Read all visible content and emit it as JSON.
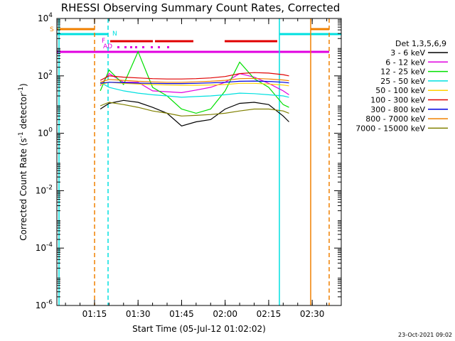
{
  "chart_data": {
    "type": "line",
    "title": "RHESSI Observing Summary Count Rates, Corrected",
    "xlabel": "Start Time (05-Jul-12 01:02:02)",
    "ylabel": "Corrected Count Rate (s⁻¹ detector⁻¹)",
    "ylabel_main": "Corrected Count Rate (s",
    "ylabel_sup1": "-1",
    "ylabel_mid": " detector",
    "ylabel_sup2": "-1",
    "ylabel_end": ")",
    "y_scale": "log",
    "ylim": [
      1e-06,
      10000
    ],
    "xlim": [
      "01:02:02",
      "02:40:00"
    ],
    "x_ticks": [
      "01:15",
      "01:30",
      "01:45",
      "02:00",
      "02:15",
      "02:30"
    ],
    "y_ticks": [
      {
        "base": "10",
        "exp": "4"
      },
      {
        "base": "10",
        "exp": "2"
      },
      {
        "base": "10",
        "exp": "0"
      },
      {
        "base": "10",
        "exp": "-2"
      },
      {
        "base": "10",
        "exp": "-4"
      },
      {
        "base": "10",
        "exp": "-6"
      }
    ],
    "legend_title": "Det 1,3,5,6,9",
    "legend_position": "right",
    "timestamp": "23-Oct-2021 09:02",
    "flags": [
      {
        "label": "S",
        "color": "#f08000"
      },
      {
        "label": "N",
        "color": "#00e0e0"
      },
      {
        "label": "F",
        "color": "#e000e0"
      },
      {
        "label": "AD",
        "color": "#e000e0"
      }
    ],
    "series": [
      {
        "name": "3 - 6 keV",
        "color": "#000000",
        "x": [
          "01:17",
          "01:20",
          "01:25",
          "01:30",
          "01:35",
          "01:40",
          "01:45",
          "01:50",
          "01:55",
          "02:00",
          "02:05",
          "02:10",
          "02:15",
          "02:20",
          "02:22"
        ],
        "y": [
          7,
          11,
          14,
          12,
          8,
          5,
          1.8,
          2.5,
          3,
          7,
          11,
          12,
          10,
          4,
          2.5
        ]
      },
      {
        "name": "6 - 12 keV",
        "color": "#e000e0",
        "x": [
          "01:17",
          "01:20",
          "01:25",
          "01:30",
          "01:35",
          "01:40",
          "01:45",
          "01:50",
          "01:55",
          "02:00",
          "02:05",
          "02:10",
          "02:15",
          "02:20",
          "02:22"
        ],
        "y": [
          45,
          120,
          60,
          60,
          30,
          28,
          26,
          32,
          40,
          60,
          120,
          90,
          55,
          30,
          22
        ]
      },
      {
        "name": "12 - 25 keV",
        "color": "#00e000",
        "x": [
          "01:17",
          "01:20",
          "01:25",
          "01:30",
          "01:35",
          "01:40",
          "01:45",
          "01:50",
          "01:55",
          "02:00",
          "02:05",
          "02:10",
          "02:15",
          "02:20",
          "02:22"
        ],
        "y": [
          30,
          160,
          50,
          700,
          40,
          20,
          7,
          5,
          7,
          30,
          300,
          80,
          40,
          10,
          8
        ]
      },
      {
        "name": "25 - 50 keV",
        "color": "#00e0e0",
        "x": [
          "01:17",
          "01:20",
          "01:25",
          "01:30",
          "01:35",
          "01:40",
          "01:45",
          "01:50",
          "01:55",
          "02:00",
          "02:05",
          "02:10",
          "02:15",
          "02:20",
          "02:22"
        ],
        "y": [
          60,
          40,
          30,
          25,
          22,
          20,
          18,
          19,
          20,
          22,
          25,
          24,
          22,
          20,
          18
        ]
      },
      {
        "name": "50 - 100 keV",
        "color": "#ffd000",
        "x": [
          "01:17",
          "01:20",
          "01:25",
          "01:30",
          "01:35",
          "01:40",
          "01:45",
          "01:50",
          "01:55",
          "02:00",
          "02:05",
          "02:10",
          "02:15",
          "02:20",
          "02:22"
        ],
        "y": [
          50,
          60,
          55,
          52,
          50,
          48,
          47,
          47,
          48,
          50,
          55,
          55,
          52,
          48,
          45
        ]
      },
      {
        "name": "100 - 300 keV",
        "color": "#e00000",
        "x": [
          "01:17",
          "01:20",
          "01:25",
          "01:30",
          "01:35",
          "01:40",
          "01:45",
          "01:50",
          "01:55",
          "02:00",
          "02:05",
          "02:10",
          "02:15",
          "02:20",
          "02:22"
        ],
        "y": [
          70,
          100,
          90,
          85,
          80,
          78,
          78,
          80,
          85,
          95,
          120,
          130,
          125,
          110,
          100
        ]
      },
      {
        "name": "300 - 800 keV",
        "color": "#0000e0",
        "x": [
          "01:17",
          "01:20",
          "01:25",
          "01:30",
          "01:35",
          "01:40",
          "01:45",
          "01:50",
          "01:55",
          "02:00",
          "02:05",
          "02:10",
          "02:15",
          "02:20",
          "02:22"
        ],
        "y": [
          55,
          60,
          58,
          56,
          55,
          54,
          54,
          55,
          57,
          60,
          65,
          66,
          64,
          60,
          57
        ]
      },
      {
        "name": "800 - 7000 keV",
        "color": "#f08000",
        "x": [
          "01:17",
          "01:20",
          "01:25",
          "01:30",
          "01:35",
          "01:40",
          "01:45",
          "01:50",
          "01:55",
          "02:00",
          "02:05",
          "02:10",
          "02:15",
          "02:20",
          "02:22"
        ],
        "y": [
          60,
          75,
          70,
          65,
          62,
          60,
          60,
          62,
          65,
          70,
          80,
          82,
          78,
          72,
          68
        ]
      },
      {
        "name": "7000 - 15000 keV",
        "color": "#808000",
        "x": [
          "01:17",
          "01:20",
          "01:25",
          "01:30",
          "01:35",
          "01:40",
          "01:45",
          "01:50",
          "01:55",
          "02:00",
          "02:05",
          "02:10",
          "02:15",
          "02:20",
          "02:22"
        ],
        "y": [
          9,
          12,
          10,
          8,
          6,
          5,
          4,
          4.2,
          4.5,
          5,
          6,
          7,
          7,
          6,
          5
        ]
      }
    ]
  }
}
